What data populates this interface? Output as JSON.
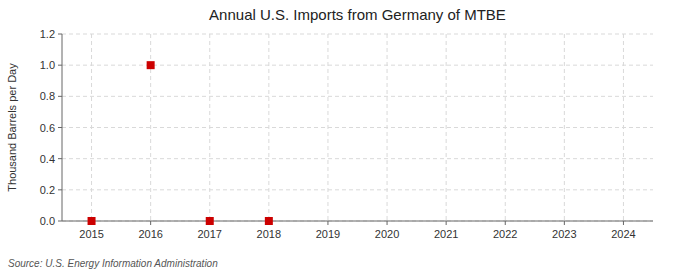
{
  "chart_data": {
    "type": "scatter",
    "title": "Annual U.S. Imports from Germany of MTBE",
    "ylabel": "Thousand Barrels per Day",
    "source": "Source: U.S. Energy Information Administration",
    "x": [
      2015,
      2016,
      2017,
      2018
    ],
    "values": [
      0.0,
      1.0,
      0.0,
      0.0
    ],
    "color": "#cc0000",
    "marker": "square",
    "grid": true,
    "xlim": [
      2014.5,
      2024.5
    ],
    "xticks": [
      2015,
      2016,
      2017,
      2018,
      2019,
      2020,
      2021,
      2022,
      2023,
      2024
    ],
    "ylim": [
      0.0,
      1.2
    ],
    "yticks": [
      {
        "value": 0.0,
        "label": "0.0"
      },
      0.2,
      0.4,
      0.6,
      0.8,
      {
        "value": 1.0,
        "label": "1.0"
      },
      1.2
    ]
  }
}
